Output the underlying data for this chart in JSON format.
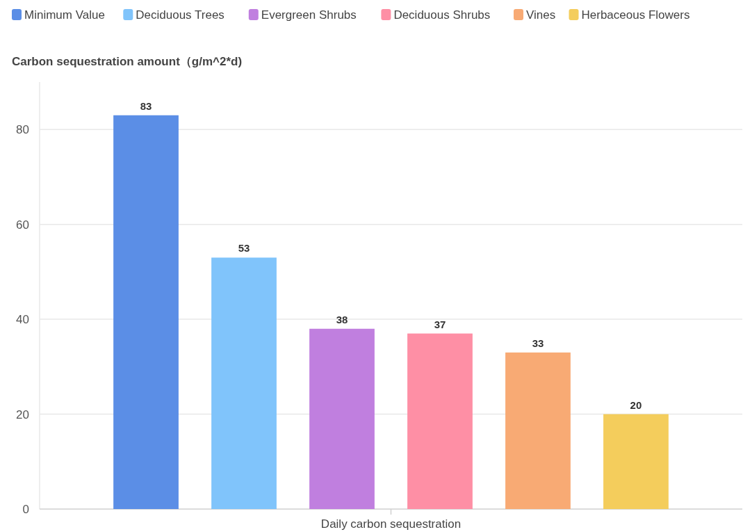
{
  "chart_data": {
    "type": "bar",
    "ylabel": "Carbon sequestration amount（g/m^2*d)",
    "categories": [
      "Daily carbon sequestration"
    ],
    "series": [
      {
        "name": "Minimum Value",
        "color": "#5b8ee6",
        "values": [
          83
        ]
      },
      {
        "name": "Deciduous Trees",
        "color": "#80c4fb",
        "values": [
          53
        ]
      },
      {
        "name": "Evergreen Shrubs",
        "color": "#c07fdf",
        "values": [
          38
        ]
      },
      {
        "name": "Deciduous Shrubs",
        "color": "#fe8fa5",
        "values": [
          37
        ]
      },
      {
        "name": "Vines",
        "color": "#f8aa74",
        "values": [
          33
        ]
      },
      {
        "name": "Herbaceous Flowers",
        "color": "#f4cd5c",
        "values": [
          20
        ]
      }
    ],
    "ylim": [
      0,
      90
    ],
    "yticks": [
      0,
      20,
      40,
      60,
      80
    ],
    "grid": "y",
    "legend": "top left",
    "data_labels": true
  }
}
